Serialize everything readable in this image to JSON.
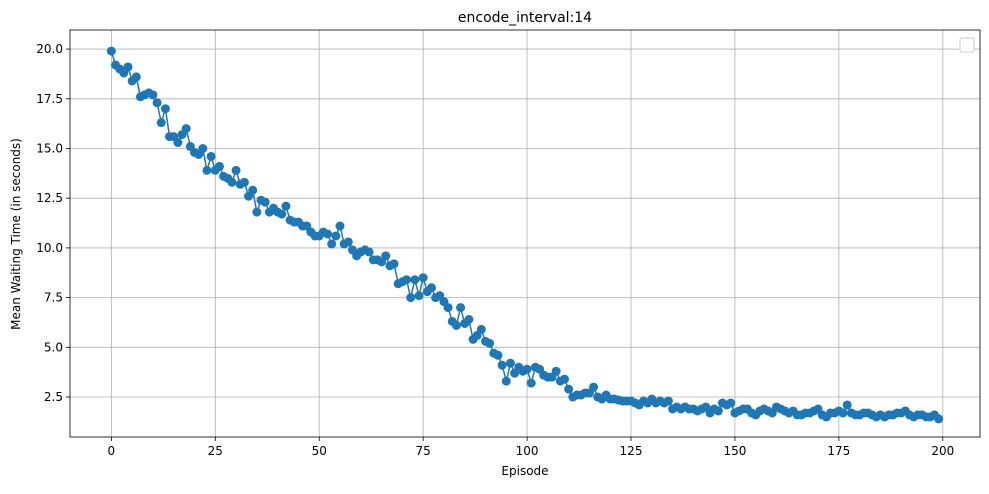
{
  "chart_data": {
    "type": "line",
    "title": "encode_interval:14",
    "xlabel": "Episode",
    "ylabel": "Mean Waiting Time (in seconds)",
    "color": "#1f77b4",
    "grid": true,
    "markers": true,
    "xlim": [
      -9.95,
      208.95
    ],
    "xticks": [
      0,
      25,
      50,
      75,
      100,
      125,
      150,
      175,
      200
    ],
    "ylim": [
      0.49,
      20.96
    ],
    "yticks": [
      2.5,
      {
        "value": 5,
        "label": "5.0"
      },
      7.5,
      {
        "value": 10,
        "label": "10.0"
      },
      12.5,
      {
        "value": 15,
        "label": "15.0"
      },
      17.5,
      {
        "value": 20,
        "label": "20.0"
      }
    ],
    "x": [
      0,
      1,
      2,
      3,
      4,
      5,
      6,
      7,
      8,
      9,
      10,
      11,
      12,
      13,
      14,
      15,
      16,
      17,
      18,
      19,
      20,
      21,
      22,
      23,
      24,
      25,
      26,
      27,
      28,
      29,
      30,
      31,
      32,
      33,
      34,
      35,
      36,
      37,
      38,
      39,
      40,
      41,
      42,
      43,
      44,
      45,
      46,
      47,
      48,
      49,
      50,
      51,
      52,
      53,
      54,
      55,
      56,
      57,
      58,
      59,
      60,
      61,
      62,
      63,
      64,
      65,
      66,
      67,
      68,
      69,
      70,
      71,
      72,
      73,
      74,
      75,
      76,
      77,
      78,
      79,
      80,
      81,
      82,
      83,
      84,
      85,
      86,
      87,
      88,
      89,
      90,
      91,
      92,
      93,
      94,
      95,
      96,
      97,
      98,
      99,
      100,
      101,
      102,
      103,
      104,
      105,
      106,
      107,
      108,
      109,
      110,
      111,
      112,
      113,
      114,
      115,
      116,
      117,
      118,
      119,
      120,
      121,
      122,
      123,
      124,
      125,
      126,
      127,
      128,
      129,
      130,
      131,
      132,
      133,
      134,
      135,
      136,
      137,
      138,
      139,
      140,
      141,
      142,
      143,
      144,
      145,
      146,
      147,
      148,
      149,
      150,
      151,
      152,
      153,
      154,
      155,
      156,
      157,
      158,
      159,
      160,
      161,
      162,
      163,
      164,
      165,
      166,
      167,
      168,
      169,
      170,
      171,
      172,
      173,
      174,
      175,
      176,
      177,
      178,
      179,
      180,
      181,
      182,
      183,
      184,
      185,
      186,
      187,
      188,
      189,
      190,
      191,
      192,
      193,
      194,
      195,
      196,
      197,
      198,
      199
    ],
    "values": [
      19.9,
      19.2,
      19.0,
      18.8,
      19.1,
      18.4,
      18.6,
      17.6,
      17.7,
      17.8,
      17.7,
      17.3,
      16.3,
      17.0,
      15.6,
      15.6,
      15.3,
      15.7,
      16.0,
      15.1,
      14.8,
      14.7,
      15.0,
      13.9,
      14.6,
      13.9,
      14.1,
      13.6,
      13.5,
      13.3,
      13.9,
      13.2,
      13.3,
      12.6,
      12.9,
      11.8,
      12.4,
      12.3,
      11.8,
      12.0,
      11.8,
      11.7,
      12.1,
      11.4,
      11.3,
      11.3,
      11.1,
      11.1,
      10.8,
      10.6,
      10.6,
      10.8,
      10.7,
      10.2,
      10.6,
      11.1,
      10.2,
      10.3,
      9.9,
      9.6,
      9.8,
      9.9,
      9.8,
      9.4,
      9.4,
      9.3,
      9.6,
      9.1,
      9.2,
      8.2,
      8.3,
      8.4,
      7.5,
      8.4,
      7.6,
      8.5,
      7.8,
      8.0,
      7.5,
      7.6,
      7.3,
      7.0,
      6.3,
      6.1,
      7.0,
      6.2,
      6.4,
      5.4,
      5.6,
      5.9,
      5.3,
      5.2,
      4.7,
      4.6,
      4.1,
      3.3,
      4.2,
      3.7,
      4.0,
      3.8,
      3.9,
      3.2,
      4.0,
      3.9,
      3.6,
      3.5,
      3.5,
      3.8,
      3.3,
      3.4,
      2.9,
      2.5,
      2.6,
      2.6,
      2.7,
      2.7,
      3.0,
      2.5,
      2.4,
      2.6,
      2.4,
      2.4,
      2.35,
      2.3,
      2.3,
      2.3,
      2.2,
      2.1,
      2.3,
      2.2,
      2.4,
      2.2,
      2.3,
      2.2,
      2.3,
      1.9,
      2.0,
      1.9,
      2.0,
      1.9,
      1.9,
      1.8,
      1.9,
      2.0,
      1.7,
      1.9,
      1.8,
      2.2,
      2.1,
      2.2,
      1.7,
      1.8,
      1.9,
      1.9,
      1.7,
      1.6,
      1.8,
      1.9,
      1.8,
      1.7,
      2.0,
      1.9,
      1.8,
      1.7,
      1.8,
      1.6,
      1.6,
      1.7,
      1.7,
      1.8,
      1.9,
      1.6,
      1.5,
      1.7,
      1.7,
      1.8,
      1.7,
      2.1,
      1.7,
      1.6,
      1.6,
      1.7,
      1.7,
      1.6,
      1.5,
      1.6,
      1.5,
      1.6,
      1.6,
      1.7,
      1.7,
      1.8,
      1.6,
      1.5,
      1.6,
      1.6,
      1.5,
      1.5,
      1.6,
      1.4
    ]
  }
}
